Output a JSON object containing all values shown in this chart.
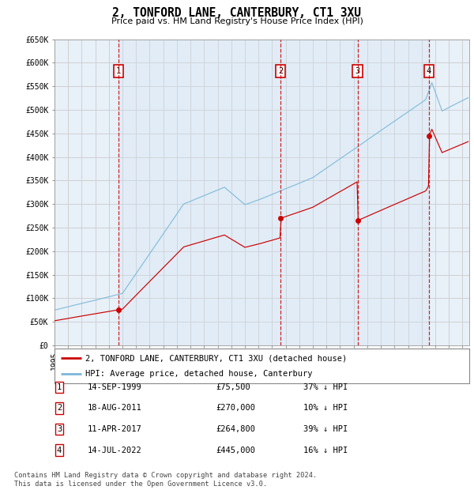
{
  "title": "2, TONFORD LANE, CANTERBURY, CT1 3XU",
  "subtitle": "Price paid vs. HM Land Registry's House Price Index (HPI)",
  "ylim": [
    0,
    650000
  ],
  "yticks": [
    0,
    50000,
    100000,
    150000,
    200000,
    250000,
    300000,
    350000,
    400000,
    450000,
    500000,
    550000,
    600000,
    650000
  ],
  "ytick_labels": [
    "£0",
    "£50K",
    "£100K",
    "£150K",
    "£200K",
    "£250K",
    "£300K",
    "£350K",
    "£400K",
    "£450K",
    "£500K",
    "£550K",
    "£600K",
    "£650K"
  ],
  "background_color": "#ffffff",
  "plot_bg_color": "#e8f0f8",
  "grid_color": "#cccccc",
  "sale_color": "#cc0000",
  "hpi_color": "#7ab8d9",
  "shade_color": "#d0e4f4",
  "sales": [
    {
      "label": "1",
      "date_x": 1999.71,
      "price": 75500
    },
    {
      "label": "2",
      "date_x": 2011.63,
      "price": 270000
    },
    {
      "label": "3",
      "date_x": 2017.28,
      "price": 264800
    },
    {
      "label": "4",
      "date_x": 2022.54,
      "price": 445000
    }
  ],
  "table_rows": [
    [
      "1",
      "14-SEP-1999",
      "£75,500",
      "37% ↓ HPI"
    ],
    [
      "2",
      "18-AUG-2011",
      "£270,000",
      "10% ↓ HPI"
    ],
    [
      "3",
      "11-APR-2017",
      "£264,800",
      "39% ↓ HPI"
    ],
    [
      "4",
      "14-JUL-2022",
      "£445,000",
      "16% ↓ HPI"
    ]
  ],
  "legend_labels": [
    "2, TONFORD LANE, CANTERBURY, CT1 3XU (detached house)",
    "HPI: Average price, detached house, Canterbury"
  ],
  "footer": "Contains HM Land Registry data © Crown copyright and database right 2024.\nThis data is licensed under the Open Government Licence v3.0.",
  "xmin": 1995.0,
  "xmax": 2025.5
}
